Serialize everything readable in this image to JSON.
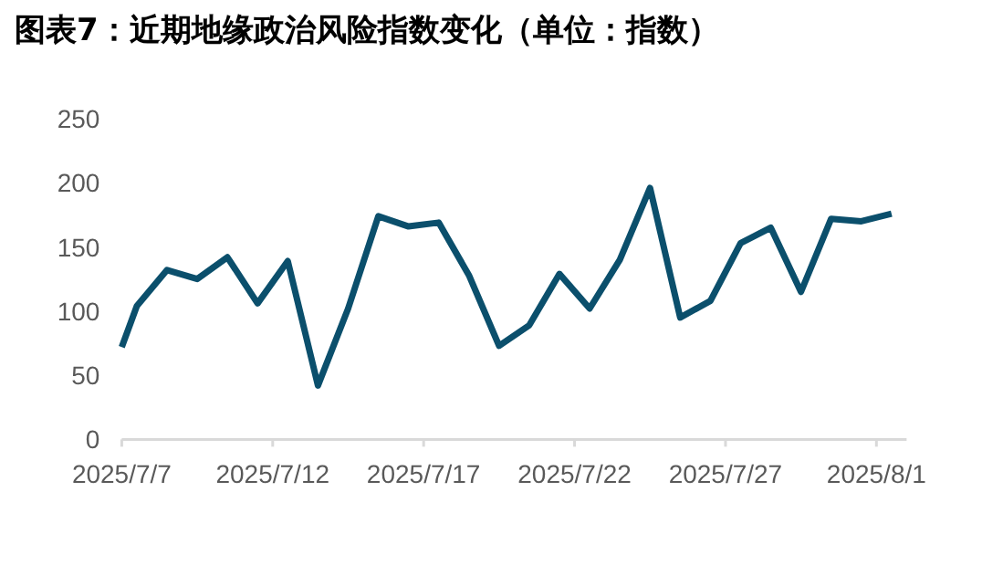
{
  "chart_data": {
    "type": "line",
    "title": "图表7：近期地缘政治风险指数变化（单位：指数）",
    "x": [
      "2025-07-07T00:00",
      "2025-07-07T12:00",
      "2025-07-08T12:00",
      "2025-07-09T12:00",
      "2025-07-10T12:00",
      "2025-07-11T12:00",
      "2025-07-12T12:00",
      "2025-07-13T12:00",
      "2025-07-14T12:00",
      "2025-07-15T12:00",
      "2025-07-16T12:00",
      "2025-07-17T12:00",
      "2025-07-18T12:00",
      "2025-07-19T12:00",
      "2025-07-20T12:00",
      "2025-07-21T12:00",
      "2025-07-22T12:00",
      "2025-07-23T12:00",
      "2025-07-24T12:00",
      "2025-07-25T12:00",
      "2025-07-26T12:00",
      "2025-07-27T12:00",
      "2025-07-28T12:00",
      "2025-07-29T12:00",
      "2025-07-30T12:00",
      "2025-07-31T12:00",
      "2025-08-01T12:00"
    ],
    "series": [
      {
        "color": "#0b4f6c",
        "values": [
          72,
          104,
          132,
          125,
          142,
          106,
          139,
          42,
          102,
          174,
          166,
          169,
          128,
          73,
          89,
          129,
          102,
          140,
          196,
          95,
          108,
          153,
          165,
          115,
          172,
          170,
          176
        ]
      }
    ],
    "xlim": [
      "2025-07-07",
      "2025-08-02"
    ],
    "xticks": [
      {
        "value": "2025-07-07",
        "label": "2025/7/7"
      },
      {
        "value": "2025-07-12",
        "label": "2025/7/12"
      },
      {
        "value": "2025-07-17",
        "label": "2025/7/17"
      },
      {
        "value": "2025-07-22",
        "label": "2025/7/22"
      },
      {
        "value": "2025-07-27",
        "label": "2025/7/27"
      },
      {
        "value": "2025-08-01",
        "label": "2025/8/1"
      }
    ],
    "ylim": [
      0,
      250
    ],
    "yticks": [
      0,
      50,
      100,
      150,
      200,
      250
    ],
    "grid": false,
    "marker": "none",
    "line_style": "solid"
  }
}
